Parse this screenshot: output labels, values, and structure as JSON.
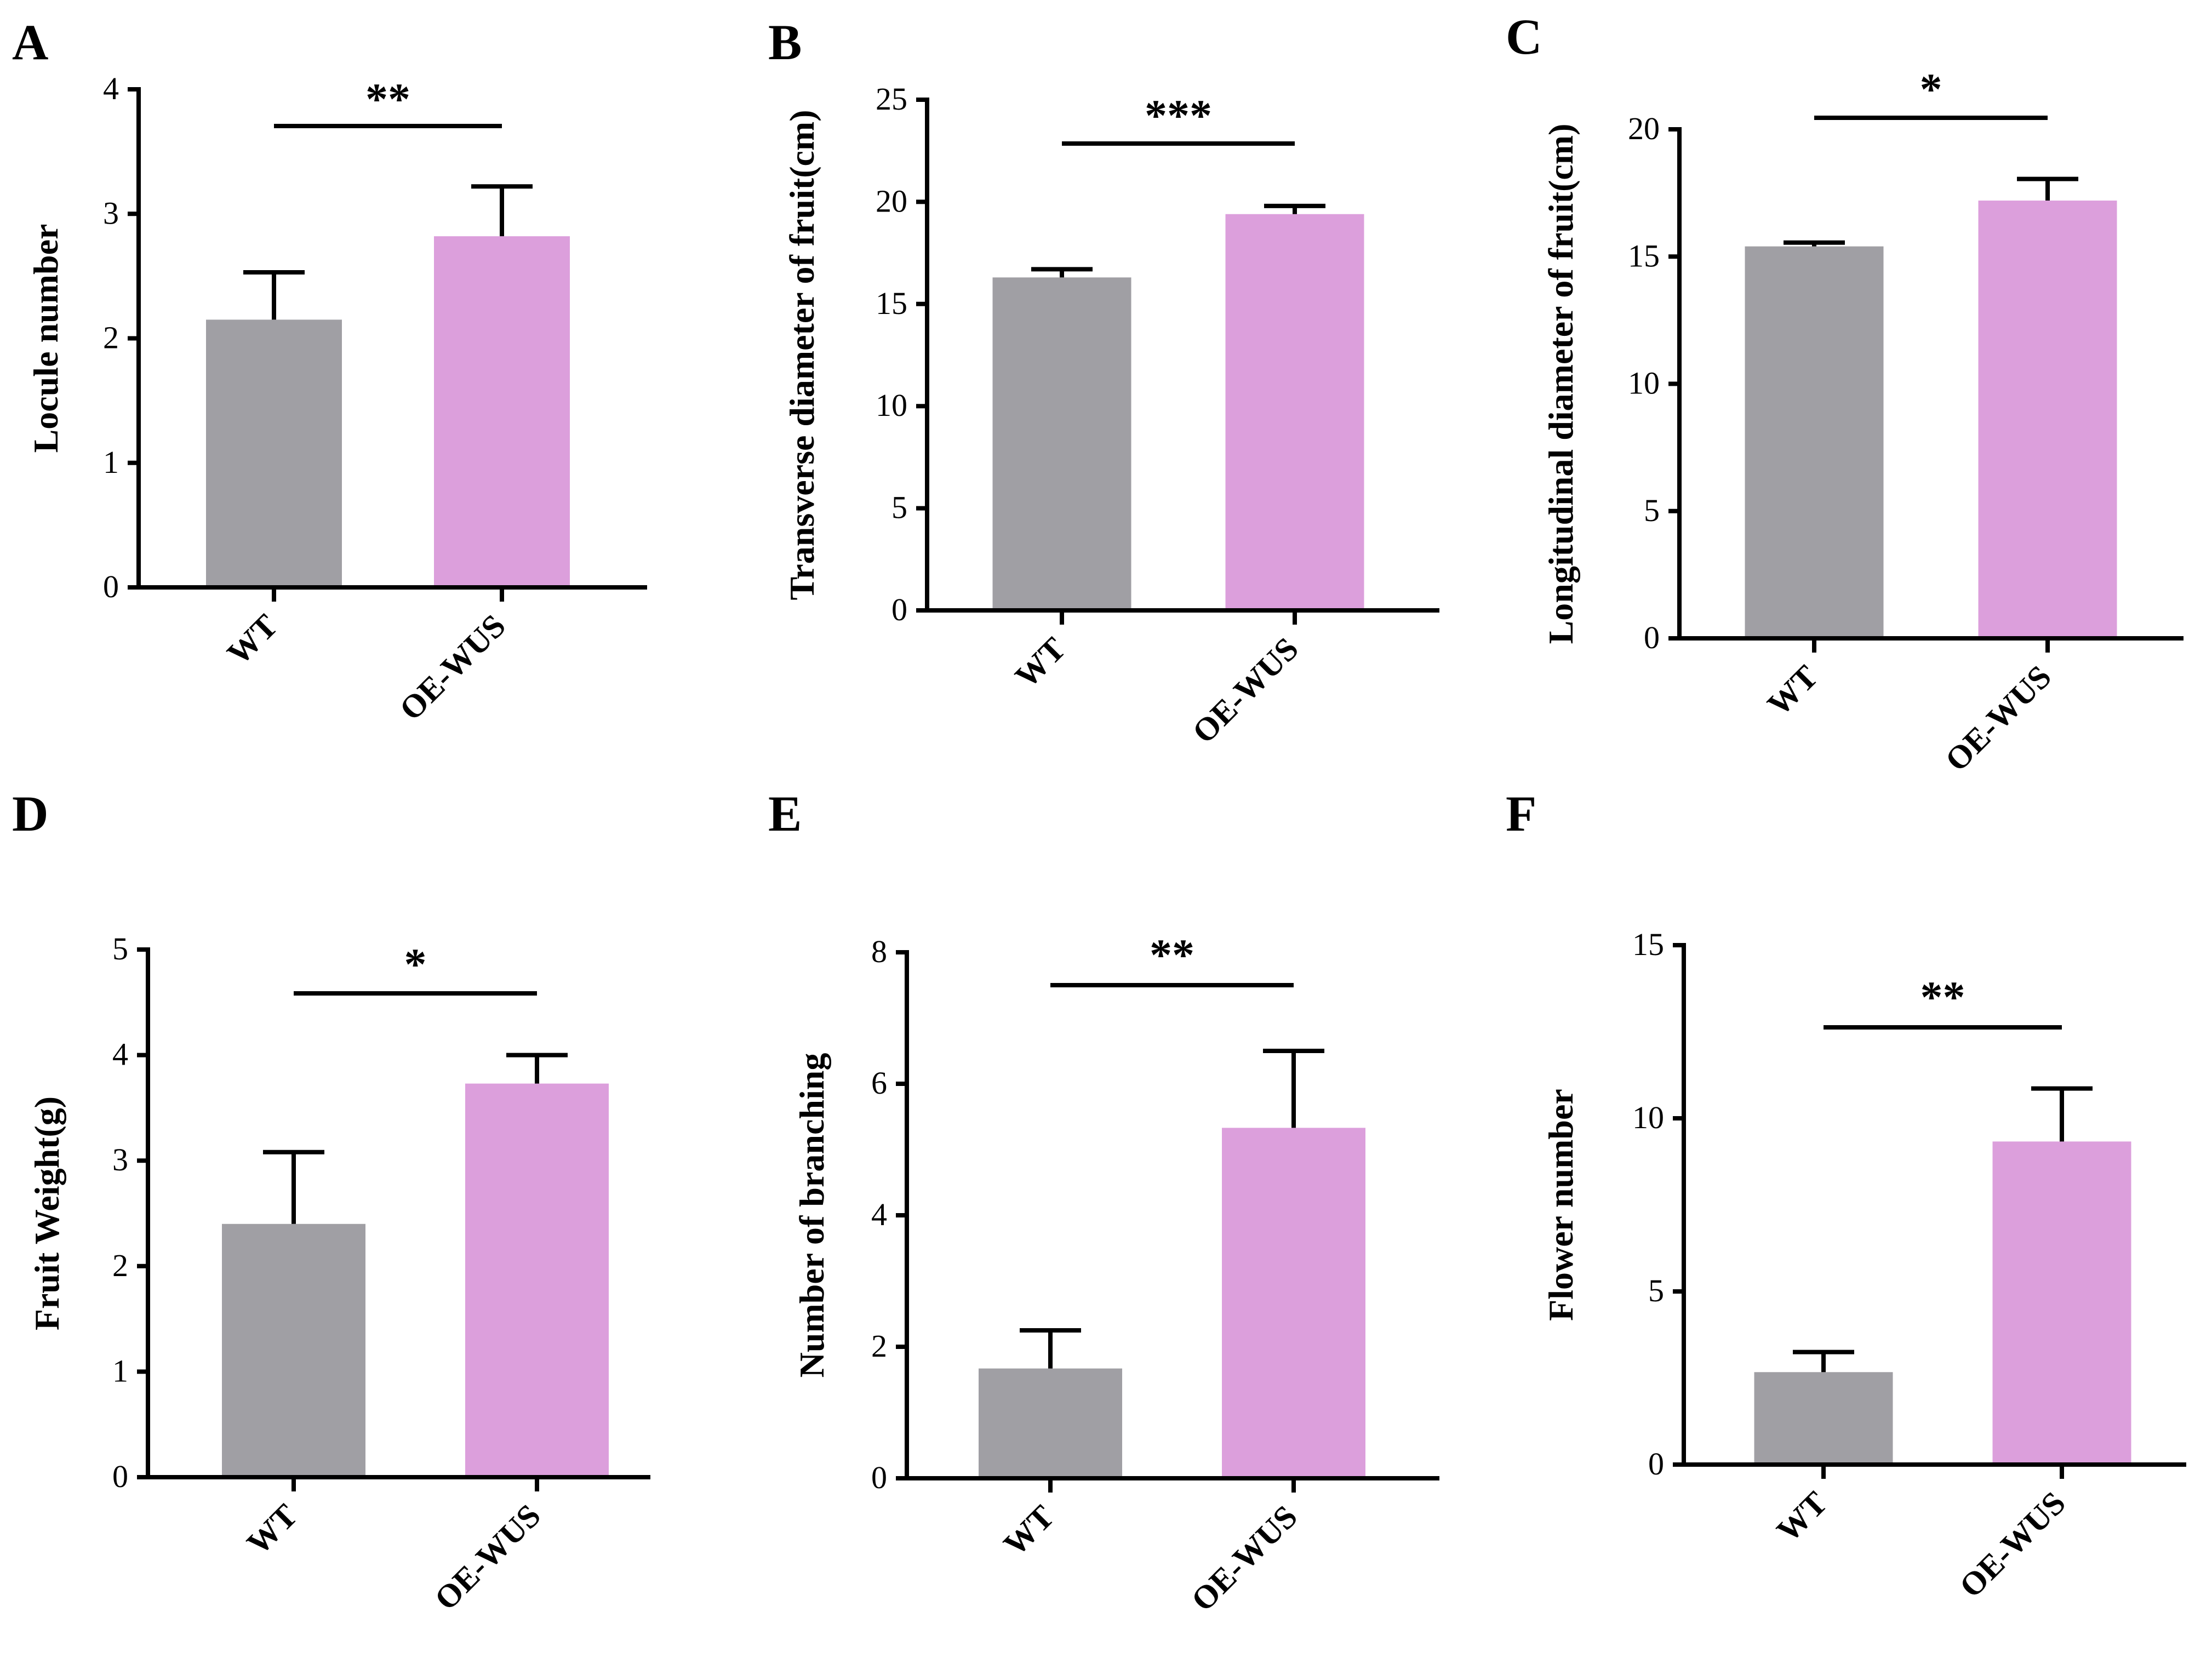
{
  "figure": {
    "colors": {
      "wt": "#a09fa4",
      "oe": "#dc9fdc",
      "ink": "#000000"
    }
  },
  "chart_data": [
    {
      "panel": "A",
      "type": "bar",
      "categories": [
        "WT",
        "OE-WUS"
      ],
      "values": [
        2.15,
        2.82
      ],
      "errors": [
        0.38,
        0.4
      ],
      "ylabel": "Locule  number",
      "ylim": [
        0,
        4
      ],
      "yticks": [
        0,
        1,
        2,
        3,
        4
      ],
      "ytick_labels": [
        "0",
        "1",
        "2",
        "3",
        "4"
      ],
      "significance": "**"
    },
    {
      "panel": "B",
      "type": "bar",
      "categories": [
        "WT",
        "OE-WUS"
      ],
      "values": [
        16.3,
        19.4
      ],
      "errors": [
        0.4,
        0.4
      ],
      "ylabel": "Transverse diameter of fruit(cm)",
      "ylim": [
        0,
        25
      ],
      "yticks": [
        0,
        5,
        10,
        15,
        20,
        25
      ],
      "ytick_labels": [
        "0",
        "5",
        "10",
        "15",
        "20",
        "25"
      ],
      "significance": "***"
    },
    {
      "panel": "C",
      "type": "bar",
      "categories": [
        "WT",
        "OE-WUS"
      ],
      "values": [
        15.4,
        17.2
      ],
      "errors": [
        0.15,
        0.85
      ],
      "ylabel": "Longitudinal diameter of fruit(cm)",
      "ylim": [
        0,
        20
      ],
      "yticks": [
        0,
        5,
        10,
        15,
        20
      ],
      "ytick_labels": [
        "0",
        "5",
        "10",
        "15",
        "20"
      ],
      "significance": "*"
    },
    {
      "panel": "D",
      "type": "bar",
      "categories": [
        "WT",
        "OE-WUS"
      ],
      "values": [
        2.4,
        3.73
      ],
      "errors": [
        0.68,
        0.27
      ],
      "ylabel": "Fruit Weight(g)",
      "ylim": [
        0,
        5
      ],
      "yticks": [
        0,
        1,
        2,
        3,
        4,
        5
      ],
      "ytick_labels": [
        "0",
        "1",
        "2",
        "3",
        "4",
        "5"
      ],
      "significance": "*"
    },
    {
      "panel": "E",
      "type": "bar",
      "categories": [
        "WT",
        "OE-WUS"
      ],
      "values": [
        1.67,
        5.33
      ],
      "errors": [
        0.58,
        1.17
      ],
      "ylabel": "Number of branching",
      "ylim": [
        0,
        8
      ],
      "yticks": [
        0,
        2,
        4,
        6,
        8
      ],
      "ytick_labels": [
        "0",
        "2",
        "4",
        "6",
        "8"
      ],
      "significance": "**"
    },
    {
      "panel": "F",
      "type": "bar",
      "categories": [
        "WT",
        "OE-WUS"
      ],
      "values": [
        2.67,
        9.33
      ],
      "errors": [
        0.58,
        1.53
      ],
      "ylabel": "Flower number",
      "ylim": [
        0,
        15
      ],
      "yticks": [
        0,
        5,
        10,
        15
      ],
      "ytick_labels": [
        "0",
        "5",
        "10",
        "15"
      ],
      "significance": "**"
    }
  ]
}
